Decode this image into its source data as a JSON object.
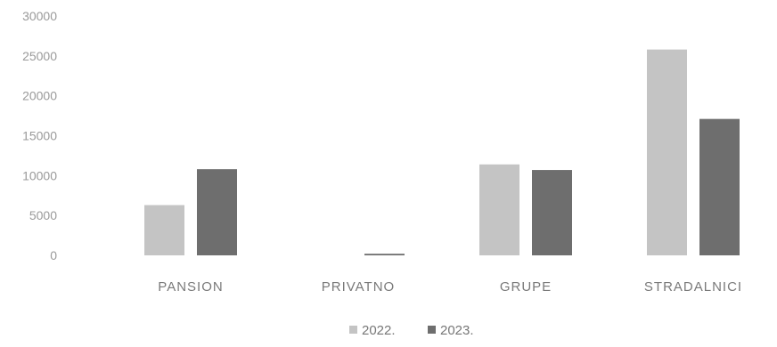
{
  "chart_data": {
    "type": "bar",
    "title": "",
    "xlabel": "",
    "ylabel": "",
    "categories": [
      "PANSION",
      "PRIVATNO",
      "GRUPE",
      "STRADALNICI"
    ],
    "series": [
      {
        "name": "2022.",
        "values": [
          6300,
          0,
          11400,
          25800
        ],
        "color": "#c4c4c4"
      },
      {
        "name": "2023.",
        "values": [
          10800,
          200,
          10700,
          17100
        ],
        "color": "#6e6e6e"
      }
    ],
    "ylim": [
      0,
      30000
    ],
    "yticks": [
      0,
      5000,
      10000,
      15000,
      20000,
      25000,
      30000
    ],
    "grid": false,
    "legend": "bottom-center"
  }
}
